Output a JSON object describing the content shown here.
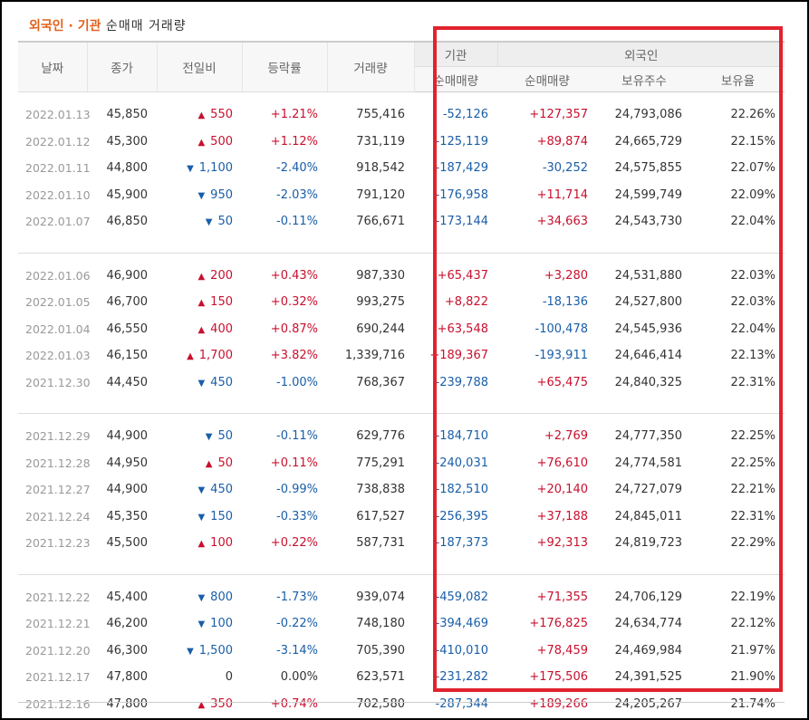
{
  "title": {
    "part1": "외국인",
    "dot": " · ",
    "part2": "기관",
    "rest": " 순매매 거래량"
  },
  "headers": {
    "date": "날짜",
    "close": "종가",
    "change": "전일비",
    "rate": "등락률",
    "volume": "거래량",
    "institution": "기관",
    "foreign": "외국인",
    "inst_net": "순매매량",
    "foreign_net": "순매매량",
    "holdings": "보유주수",
    "ratio": "보유율"
  },
  "colors": {
    "up": "#c8102e",
    "down": "#1a5ea8",
    "title_orange": "#e2611d",
    "highlight": "#e0232e"
  },
  "groups": [
    [
      {
        "date": "2022.01.13",
        "close": "45,850",
        "dir": "up",
        "change": "550",
        "rate": "+1.21%",
        "volume": "755,416",
        "inst": "-52,126",
        "foreign": "+127,357",
        "holdings": "24,793,086",
        "ratio": "22.26%"
      },
      {
        "date": "2022.01.12",
        "close": "45,300",
        "dir": "up",
        "change": "500",
        "rate": "+1.12%",
        "volume": "731,119",
        "inst": "-125,119",
        "foreign": "+89,874",
        "holdings": "24,665,729",
        "ratio": "22.15%"
      },
      {
        "date": "2022.01.11",
        "close": "44,800",
        "dir": "down",
        "change": "1,100",
        "rate": "-2.40%",
        "volume": "918,542",
        "inst": "-187,429",
        "foreign": "-30,252",
        "holdings": "24,575,855",
        "ratio": "22.07%"
      },
      {
        "date": "2022.01.10",
        "close": "45,900",
        "dir": "down",
        "change": "950",
        "rate": "-2.03%",
        "volume": "791,120",
        "inst": "-176,958",
        "foreign": "+11,714",
        "holdings": "24,599,749",
        "ratio": "22.09%"
      },
      {
        "date": "2022.01.07",
        "close": "46,850",
        "dir": "down",
        "change": "50",
        "rate": "-0.11%",
        "volume": "766,671",
        "inst": "-173,144",
        "foreign": "+34,663",
        "holdings": "24,543,730",
        "ratio": "22.04%"
      }
    ],
    [
      {
        "date": "2022.01.06",
        "close": "46,900",
        "dir": "up",
        "change": "200",
        "rate": "+0.43%",
        "volume": "987,330",
        "inst": "+65,437",
        "foreign": "+3,280",
        "holdings": "24,531,880",
        "ratio": "22.03%"
      },
      {
        "date": "2022.01.05",
        "close": "46,700",
        "dir": "up",
        "change": "150",
        "rate": "+0.32%",
        "volume": "993,275",
        "inst": "+8,822",
        "foreign": "-18,136",
        "holdings": "24,527,800",
        "ratio": "22.03%"
      },
      {
        "date": "2022.01.04",
        "close": "46,550",
        "dir": "up",
        "change": "400",
        "rate": "+0.87%",
        "volume": "690,244",
        "inst": "+63,548",
        "foreign": "-100,478",
        "holdings": "24,545,936",
        "ratio": "22.04%"
      },
      {
        "date": "2022.01.03",
        "close": "46,150",
        "dir": "up",
        "change": "1,700",
        "rate": "+3.82%",
        "volume": "1,339,716",
        "inst": "+189,367",
        "foreign": "-193,911",
        "holdings": "24,646,414",
        "ratio": "22.13%"
      },
      {
        "date": "2021.12.30",
        "close": "44,450",
        "dir": "down",
        "change": "450",
        "rate": "-1.00%",
        "volume": "768,367",
        "inst": "-239,788",
        "foreign": "+65,475",
        "holdings": "24,840,325",
        "ratio": "22.31%"
      }
    ],
    [
      {
        "date": "2021.12.29",
        "close": "44,900",
        "dir": "down",
        "change": "50",
        "rate": "-0.11%",
        "volume": "629,776",
        "inst": "-184,710",
        "foreign": "+2,769",
        "holdings": "24,777,350",
        "ratio": "22.25%"
      },
      {
        "date": "2021.12.28",
        "close": "44,950",
        "dir": "up",
        "change": "50",
        "rate": "+0.11%",
        "volume": "775,291",
        "inst": "-240,031",
        "foreign": "+76,610",
        "holdings": "24,774,581",
        "ratio": "22.25%"
      },
      {
        "date": "2021.12.27",
        "close": "44,900",
        "dir": "down",
        "change": "450",
        "rate": "-0.99%",
        "volume": "738,838",
        "inst": "-182,510",
        "foreign": "+20,140",
        "holdings": "24,727,079",
        "ratio": "22.21%"
      },
      {
        "date": "2021.12.24",
        "close": "45,350",
        "dir": "down",
        "change": "150",
        "rate": "-0.33%",
        "volume": "617,527",
        "inst": "-256,395",
        "foreign": "+37,188",
        "holdings": "24,845,011",
        "ratio": "22.31%"
      },
      {
        "date": "2021.12.23",
        "close": "45,500",
        "dir": "up",
        "change": "100",
        "rate": "+0.22%",
        "volume": "587,731",
        "inst": "-187,373",
        "foreign": "+92,313",
        "holdings": "24,819,723",
        "ratio": "22.29%"
      }
    ],
    [
      {
        "date": "2021.12.22",
        "close": "45,400",
        "dir": "down",
        "change": "800",
        "rate": "-1.73%",
        "volume": "939,074",
        "inst": "-459,082",
        "foreign": "+71,355",
        "holdings": "24,706,129",
        "ratio": "22.19%"
      },
      {
        "date": "2021.12.21",
        "close": "46,200",
        "dir": "down",
        "change": "100",
        "rate": "-0.22%",
        "volume": "748,180",
        "inst": "-394,469",
        "foreign": "+176,825",
        "holdings": "24,634,774",
        "ratio": "22.12%"
      },
      {
        "date": "2021.12.20",
        "close": "46,300",
        "dir": "down",
        "change": "1,500",
        "rate": "-3.14%",
        "volume": "705,390",
        "inst": "-410,010",
        "foreign": "+78,459",
        "holdings": "24,469,984",
        "ratio": "21.97%"
      },
      {
        "date": "2021.12.17",
        "close": "47,800",
        "dir": "none",
        "change": "0",
        "rate": "0.00%",
        "volume": "623,571",
        "inst": "-231,282",
        "foreign": "+175,506",
        "holdings": "24,391,525",
        "ratio": "21.90%"
      },
      {
        "date": "2021.12.16",
        "close": "47,800",
        "dir": "up",
        "change": "350",
        "rate": "+0.74%",
        "volume": "702,580",
        "inst": "-287,344",
        "foreign": "+189,266",
        "holdings": "24,205,267",
        "ratio": "21.74%"
      }
    ]
  ]
}
